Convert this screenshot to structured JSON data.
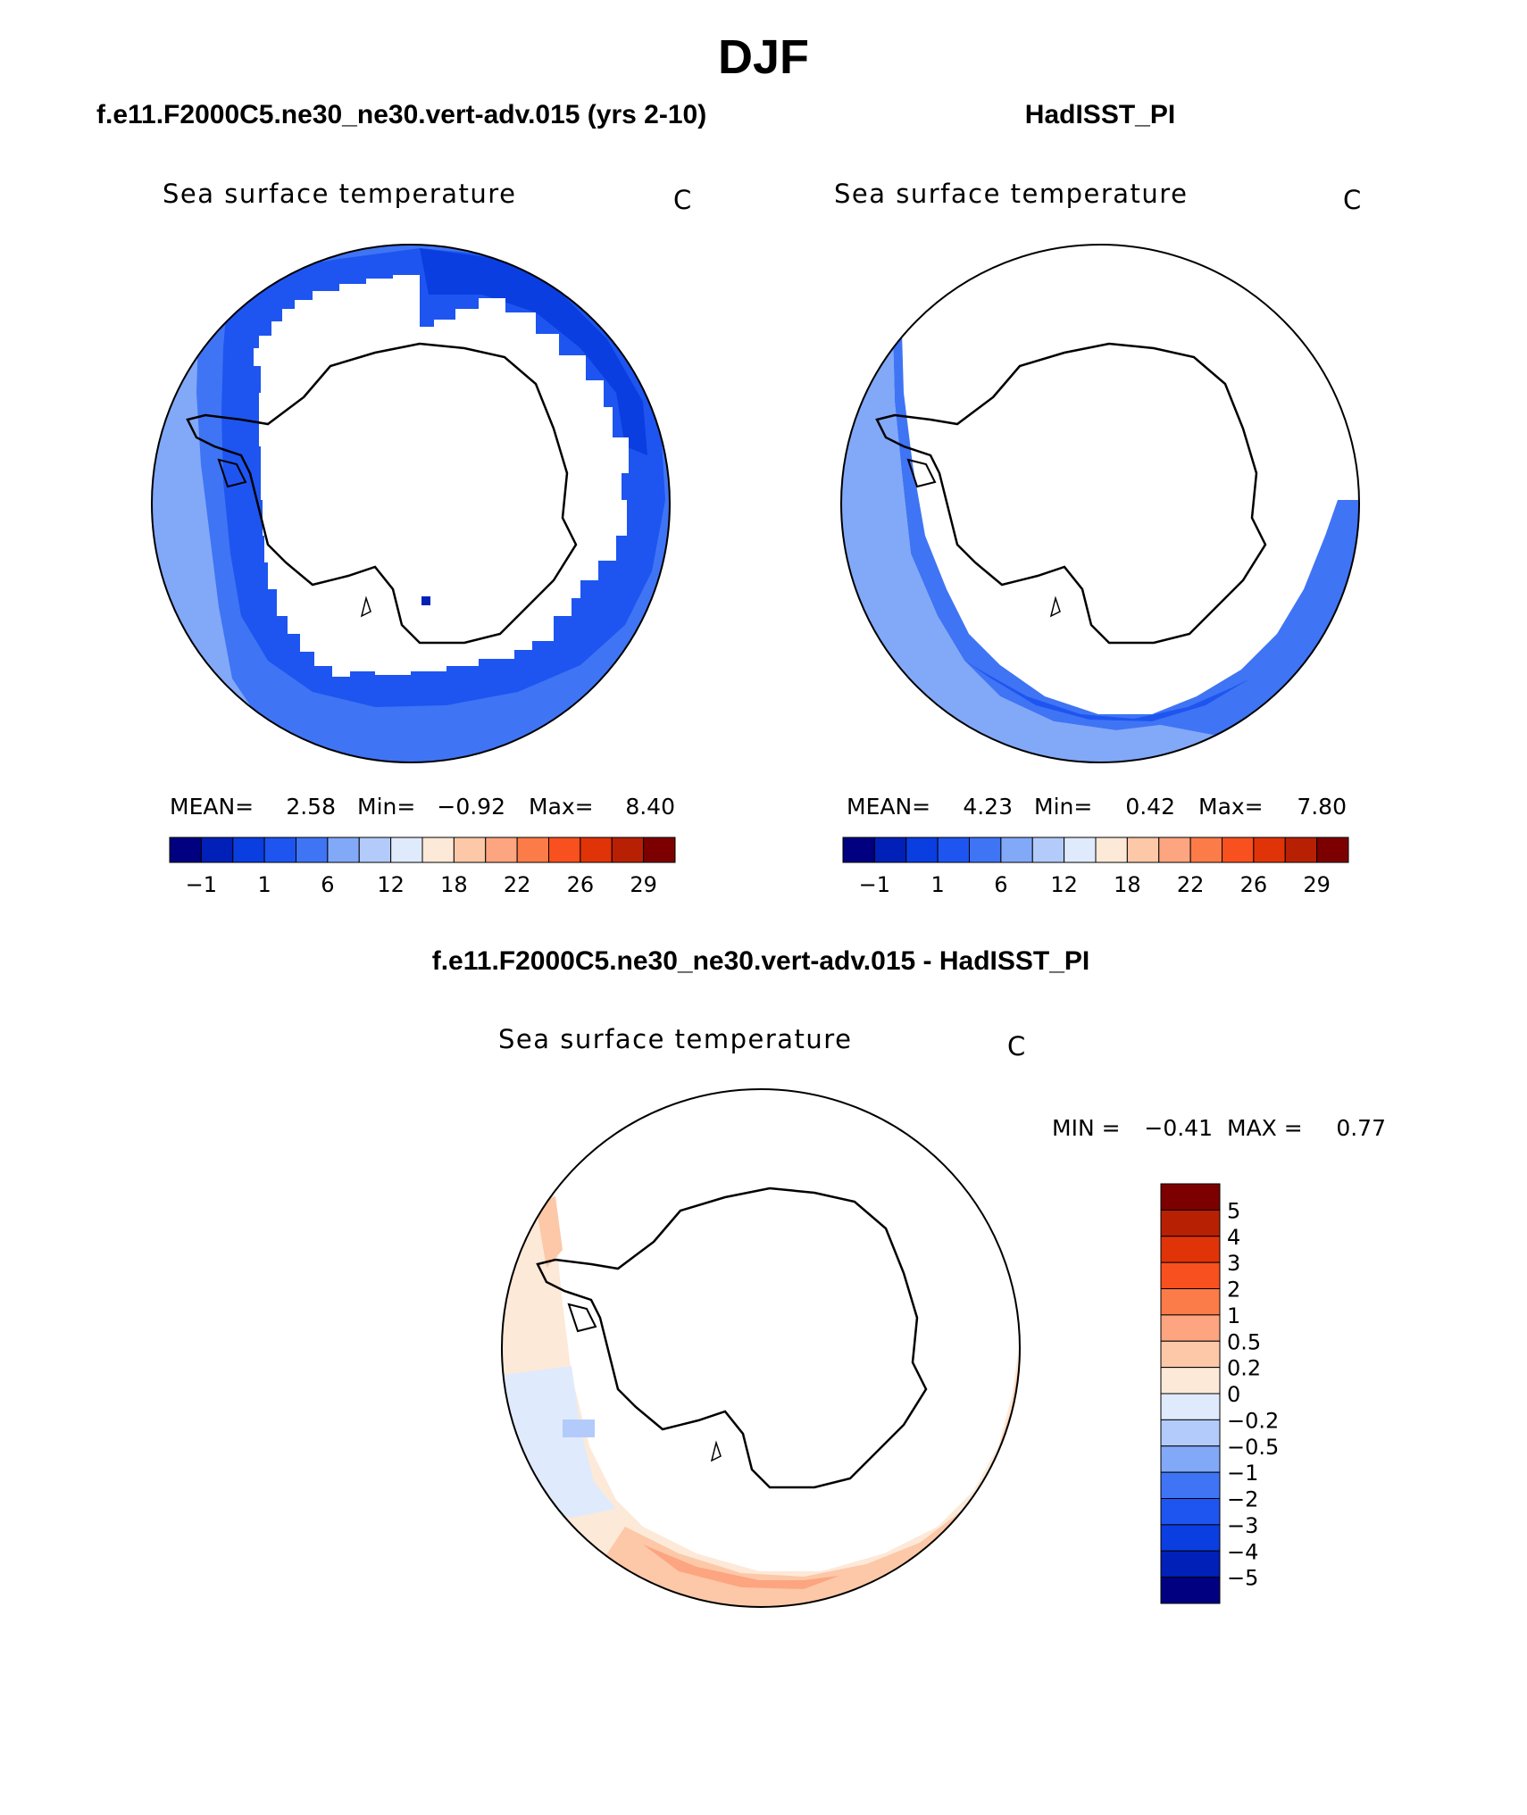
{
  "page": {
    "season": "DJF",
    "difference_title": "f.e11.F2000C5.ne30_ne30.vert-adv.015 - HadISST_PI"
  },
  "panels": {
    "model": {
      "case_title": "f.e11.F2000C5.ne30_ne30.vert-adv.015 (yrs 2-10)",
      "variable": "Sea surface temperature",
      "units": "C",
      "stats": {
        "mean_label": "MEAN=",
        "mean": "2.58",
        "min_label": "Min=",
        "min": "−0.92",
        "max_label": "Max=",
        "max": "8.40"
      }
    },
    "obs": {
      "case_title": "HadISST_PI",
      "variable": "Sea surface temperature",
      "units": "C",
      "stats": {
        "mean_label": "MEAN=",
        "mean": "4.23",
        "min_label": "Min=",
        "min": "0.42",
        "max_label": "Max=",
        "max": "7.80"
      }
    },
    "diff": {
      "variable": "Sea surface temperature",
      "units": "C",
      "minmax": {
        "min_label": "MIN =",
        "min": "−0.41",
        "max_label": "MAX =",
        "max": "0.77"
      }
    }
  },
  "colorbars": {
    "absolute": {
      "colors": [
        "#000080",
        "#0020b8",
        "#0a3ee0",
        "#1e55f0",
        "#3f74f4",
        "#82a8f8",
        "#b2cbfb",
        "#dfeafd",
        "#fde9d8",
        "#fcc8a8",
        "#fca580",
        "#fb7c48",
        "#f8501e",
        "#e03408",
        "#b82004",
        "#7d0000"
      ],
      "tick_labels": [
        "−1",
        "1",
        "6",
        "12",
        "18",
        "22",
        "26",
        "29"
      ]
    },
    "difference": {
      "colors_top_to_bottom": [
        "#7d0000",
        "#b82004",
        "#e03408",
        "#f8501e",
        "#fb7c48",
        "#fca580",
        "#fcc8a8",
        "#fde9d8",
        "#dfeafd",
        "#b2cbfb",
        "#82a8f8",
        "#3f74f4",
        "#1e55f0",
        "#0a3ee0",
        "#0020b8",
        "#000080"
      ],
      "tick_labels": [
        "5",
        "4",
        "3",
        "2",
        "1",
        "0.5",
        "0.2",
        "0",
        "−0.2",
        "−0.5",
        "−1",
        "−2",
        "−3",
        "−4",
        "−5"
      ]
    }
  }
}
